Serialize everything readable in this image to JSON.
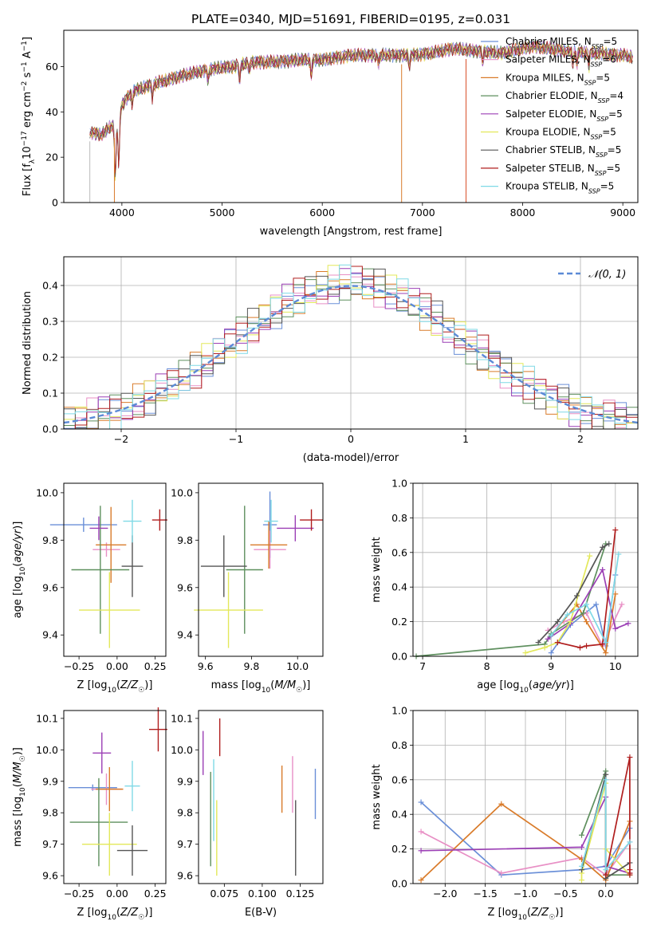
{
  "figure_title": "PLATE=0340, MJD=51691, FIBERID=0195, z=0.031",
  "legend_entries": [
    {
      "model": "Chabrier MILES",
      "n": "5",
      "color": "#6a8fd8"
    },
    {
      "model": "Salpeter MILES",
      "n": "6",
      "color": "#e88fc5"
    },
    {
      "model": "Kroupa MILES",
      "n": "5",
      "color": "#d97b2a"
    },
    {
      "model": "Chabrier ELODIE",
      "n": "4",
      "color": "#5e8f5e"
    },
    {
      "model": "Salpeter ELODIE",
      "n": "5",
      "color": "#9b3fb5"
    },
    {
      "model": "Kroupa ELODIE",
      "n": "5",
      "color": "#e3e85a"
    },
    {
      "model": "Chabrier STELIB",
      "n": "5",
      "color": "#555555"
    },
    {
      "model": "Salpeter STELIB",
      "n": "5",
      "color": "#b01e1e"
    },
    {
      "model": "Kroupa STELIB",
      "n": "5",
      "color": "#7fd9e6"
    }
  ],
  "legend_nssp_label": "N",
  "legend_nssp_sub": "SSP",
  "chart_data": [
    {
      "id": "spectrum",
      "type": "line",
      "title": "PLATE=0340, MJD=51691, FIBERID=0195, z=0.031",
      "xlabel": "wavelength [Angstrom, rest frame]",
      "ylabel": "Flux [f_λ 10^-17 erg cm^-2 s^-1 A^-1]",
      "xlim": [
        3420,
        9150
      ],
      "ylim": [
        0,
        76
      ],
      "xticks": [
        "4000",
        "5000",
        "6000",
        "7000",
        "8000",
        "9000"
      ],
      "yticks": [
        "0",
        "20",
        "40",
        "60"
      ],
      "continuum_knots": [
        [
          3680,
          31
        ],
        [
          3800,
          30
        ],
        [
          3900,
          34
        ],
        [
          3950,
          31
        ],
        [
          4000,
          43
        ],
        [
          4100,
          49
        ],
        [
          4300,
          52
        ],
        [
          4600,
          56
        ],
        [
          4900,
          59
        ],
        [
          5100,
          60
        ],
        [
          5300,
          62
        ],
        [
          5500,
          62
        ],
        [
          5800,
          63
        ],
        [
          6000,
          63
        ],
        [
          6300,
          65
        ],
        [
          6600,
          65
        ],
        [
          6900,
          65
        ],
        [
          7100,
          66
        ],
        [
          7300,
          68
        ],
        [
          7500,
          67
        ],
        [
          7800,
          66
        ],
        [
          8100,
          69
        ],
        [
          8400,
          67
        ],
        [
          8700,
          66
        ],
        [
          9000,
          65
        ],
        [
          9100,
          64
        ]
      ],
      "absorption_features": [
        [
          3934,
          22
        ],
        [
          3969,
          20
        ],
        [
          4102,
          6
        ],
        [
          4304,
          6
        ],
        [
          4861,
          5
        ],
        [
          5175,
          7
        ],
        [
          5270,
          4
        ],
        [
          5890,
          8
        ],
        [
          6563,
          4
        ],
        [
          6870,
          5
        ],
        [
          7600,
          5
        ],
        [
          8500,
          6
        ],
        [
          8542,
          6
        ],
        [
          8662,
          6
        ]
      ],
      "model_cutoffs": [
        [
          3680,
          3660,
          0
        ],
        [
          3925,
          3915,
          0
        ],
        [
          6790,
          6795,
          0
        ],
        [
          7440,
          7425,
          0
        ]
      ],
      "legend_loc": "upper right"
    },
    {
      "id": "residual-histogram",
      "type": "bar",
      "xlabel": "(data-model)/error",
      "ylabel": "Normed distribution",
      "xlim": [
        -2.5,
        2.5
      ],
      "ylim": [
        0,
        0.48
      ],
      "xticks": [
        "−2",
        "−1",
        "0",
        "1",
        "2"
      ],
      "yticks": [
        "0.0",
        "0.1",
        "0.2",
        "0.3",
        "0.4"
      ],
      "grid": true,
      "bin_width": 0.1,
      "reference_curve": {
        "label": "𝒩(0, 1)",
        "mean": 0,
        "sigma": 1,
        "color": "#5b8ad6"
      },
      "legend_loc": "upper right"
    },
    {
      "id": "age-vs-z",
      "type": "scatter",
      "xlabel": "Z [log10(Z/Z☉)]",
      "ylabel": "age [log10(age/yr)]",
      "xlim": [
        -0.35,
        0.32
      ],
      "ylim": [
        9.31,
        10.04
      ],
      "xticks": [
        "−0.25",
        "0.00",
        "0.25"
      ],
      "yticks": [
        "9.4",
        "9.6",
        "9.8",
        "10.0"
      ],
      "points": [
        {
          "x": -0.22,
          "y": 9.865,
          "xerr": 0.22,
          "yerr": 0.03,
          "color": "#6a8fd8"
        },
        {
          "x": -0.07,
          "y": 9.76,
          "xerr": 0.09,
          "yerr": 0.03,
          "color": "#e88fc5"
        },
        {
          "x": -0.04,
          "y": 9.78,
          "xerr": 0.1,
          "yerr": 0.16,
          "color": "#d97b2a"
        },
        {
          "x": -0.11,
          "y": 9.675,
          "xerr": 0.19,
          "yerr": 0.27,
          "color": "#5e8f5e"
        },
        {
          "x": -0.12,
          "y": 9.85,
          "xerr": 0.06,
          "yerr": 0.05,
          "color": "#9b3fb5"
        },
        {
          "x": -0.05,
          "y": 9.505,
          "xerr": 0.2,
          "yerr": 0.16,
          "color": "#e3e85a"
        },
        {
          "x": 0.1,
          "y": 9.69,
          "xerr": 0.07,
          "yerr": 0.13,
          "color": "#555555"
        },
        {
          "x": 0.28,
          "y": 9.885,
          "xerr": 0.05,
          "yerr": 0.045,
          "color": "#b01e1e"
        },
        {
          "x": 0.1,
          "y": 9.88,
          "xerr": 0.06,
          "yerr": 0.09,
          "color": "#7fd9e6"
        }
      ]
    },
    {
      "id": "age-vs-mass",
      "type": "scatter",
      "xlabel": "mass [log10(M/M☉)]",
      "ylabel": "",
      "xlim": [
        9.57,
        10.11
      ],
      "ylim": [
        9.31,
        10.04
      ],
      "xticks": [
        "9.6",
        "9.8",
        "10.0"
      ],
      "yticks": [
        "9.4",
        "9.6",
        "9.8",
        "10.0"
      ],
      "points": [
        {
          "x": 9.88,
          "y": 9.865,
          "xerr": 0.03,
          "yerr": 0.14,
          "color": "#6a8fd8"
        },
        {
          "x": 9.88,
          "y": 9.76,
          "xerr": 0.07,
          "yerr": 0.08,
          "color": "#e88fc5"
        },
        {
          "x": 9.875,
          "y": 9.78,
          "xerr": 0.08,
          "yerr": 0.1,
          "color": "#d97b2a"
        },
        {
          "x": 9.77,
          "y": 9.675,
          "xerr": 0.08,
          "yerr": 0.27,
          "color": "#5e8f5e"
        },
        {
          "x": 9.99,
          "y": 9.85,
          "xerr": 0.08,
          "yerr": 0.055,
          "color": "#9b3fb5"
        },
        {
          "x": 9.7,
          "y": 9.505,
          "xerr": 0.15,
          "yerr": 0.16,
          "color": "#e3e85a"
        },
        {
          "x": 9.68,
          "y": 9.69,
          "xerr": 0.1,
          "yerr": 0.13,
          "color": "#555555"
        },
        {
          "x": 10.06,
          "y": 9.885,
          "xerr": 0.05,
          "yerr": 0.045,
          "color": "#b01e1e"
        },
        {
          "x": 9.885,
          "y": 9.88,
          "xerr": 0.03,
          "yerr": 0.09,
          "color": "#7fd9e6"
        }
      ]
    },
    {
      "id": "mass-weight-vs-age",
      "type": "line",
      "xlabel": "age [log10(age/yr)]",
      "ylabel": "mass weight",
      "xlim": [
        6.85,
        10.35
      ],
      "ylim": [
        0,
        1
      ],
      "xticks": [
        "7",
        "8",
        "9",
        "10"
      ],
      "yticks": [
        "0.0",
        "0.2",
        "0.4",
        "0.6",
        "0.8",
        "1.0"
      ],
      "grid": true,
      "series": [
        {
          "color": "#6a8fd8",
          "points": [
            [
              9.0,
              0.02
            ],
            [
              9.3,
              0.18
            ],
            [
              9.7,
              0.3
            ],
            [
              9.85,
              0.06
            ],
            [
              10.0,
              0.47
            ]
          ]
        },
        {
          "color": "#e88fc5",
          "points": [
            [
              8.95,
              0.15
            ],
            [
              9.2,
              0.2
            ],
            [
              9.55,
              0.25
            ],
            [
              9.8,
              0.06
            ],
            [
              10.1,
              0.3
            ]
          ]
        },
        {
          "color": "#d97b2a",
          "points": [
            [
              9.0,
              0.12
            ],
            [
              9.4,
              0.3
            ],
            [
              9.55,
              0.2
            ],
            [
              9.85,
              0.02
            ],
            [
              10.0,
              0.36
            ]
          ]
        },
        {
          "color": "#5e8f5e",
          "points": [
            [
              6.9,
              0.0
            ],
            [
              8.9,
              0.07
            ],
            [
              9.0,
              0.13
            ],
            [
              9.5,
              0.25
            ],
            [
              9.85,
              0.65
            ]
          ]
        },
        {
          "color": "#9b3fb5",
          "points": [
            [
              8.95,
              0.1
            ],
            [
              9.3,
              0.19
            ],
            [
              9.8,
              0.5
            ],
            [
              10.0,
              0.16
            ],
            [
              10.2,
              0.19
            ]
          ]
        },
        {
          "color": "#e3e85a",
          "points": [
            [
              8.6,
              0.02
            ],
            [
              8.9,
              0.05
            ],
            [
              9.1,
              0.08
            ],
            [
              9.3,
              0.2
            ],
            [
              9.6,
              0.58
            ]
          ]
        },
        {
          "color": "#555555",
          "points": [
            [
              8.8,
              0.08
            ],
            [
              9.1,
              0.2
            ],
            [
              9.4,
              0.35
            ],
            [
              9.8,
              0.63
            ],
            [
              9.9,
              0.65
            ]
          ]
        },
        {
          "color": "#b01e1e",
          "points": [
            [
              9.1,
              0.08
            ],
            [
              9.45,
              0.05
            ],
            [
              9.55,
              0.06
            ],
            [
              9.8,
              0.07
            ],
            [
              10.0,
              0.73
            ]
          ]
        },
        {
          "color": "#7fd9e6",
          "points": [
            [
              9.0,
              0.12
            ],
            [
              9.25,
              0.24
            ],
            [
              9.55,
              0.3
            ],
            [
              9.85,
              0.08
            ],
            [
              10.05,
              0.59
            ]
          ]
        }
      ]
    },
    {
      "id": "mass-vs-z",
      "type": "scatter",
      "xlabel": "Z [log10(Z/Z☉)]",
      "ylabel": "mass [log10(M/M☉)]",
      "xlim": [
        -0.35,
        0.32
      ],
      "ylim": [
        9.575,
        10.125
      ],
      "xticks": [
        "−0.25",
        "0.00",
        "0.25"
      ],
      "yticks": [
        "9.6",
        "9.7",
        "9.8",
        "9.9",
        "10.0",
        "10.1"
      ],
      "points": [
        {
          "x": -0.16,
          "y": 9.88,
          "xerr": 0.16,
          "yerr": 0.01,
          "color": "#6a8fd8"
        },
        {
          "x": -0.07,
          "y": 9.875,
          "xerr": 0.1,
          "yerr": 0.05,
          "color": "#e88fc5"
        },
        {
          "x": -0.05,
          "y": 9.875,
          "xerr": 0.09,
          "yerr": 0.07,
          "color": "#d97b2a"
        },
        {
          "x": -0.12,
          "y": 9.77,
          "xerr": 0.19,
          "yerr": 0.14,
          "color": "#5e8f5e"
        },
        {
          "x": -0.1,
          "y": 9.99,
          "xerr": 0.06,
          "yerr": 0.065,
          "color": "#9b3fb5"
        },
        {
          "x": -0.05,
          "y": 9.7,
          "xerr": 0.18,
          "yerr": 0.1,
          "color": "#e3e85a"
        },
        {
          "x": 0.1,
          "y": 9.68,
          "xerr": 0.1,
          "yerr": 0.08,
          "color": "#555555"
        },
        {
          "x": 0.27,
          "y": 10.065,
          "xerr": 0.06,
          "yerr": 0.07,
          "color": "#b01e1e"
        },
        {
          "x": 0.1,
          "y": 9.885,
          "xerr": 0.05,
          "yerr": 0.08,
          "color": "#7fd9e6"
        }
      ]
    },
    {
      "id": "mass-vs-ebv",
      "type": "scatter",
      "xlabel": "E(B-V)",
      "ylabel": "",
      "xlim": [
        0.058,
        0.14
      ],
      "ylim": [
        9.575,
        10.125
      ],
      "xticks": [
        "0.075",
        "0.100",
        "0.125"
      ],
      "yticks": [
        "9.6",
        "9.7",
        "9.8",
        "9.9",
        "10.0",
        "10.1"
      ],
      "points": [
        {
          "x": 0.135,
          "y": 9.86,
          "yerr": 0.08,
          "color": "#6a8fd8"
        },
        {
          "x": 0.12,
          "y": 9.89,
          "yerr": 0.09,
          "color": "#e88fc5"
        },
        {
          "x": 0.113,
          "y": 9.875,
          "yerr": 0.075,
          "color": "#d97b2a"
        },
        {
          "x": 0.066,
          "y": 9.78,
          "yerr": 0.15,
          "color": "#5e8f5e"
        },
        {
          "x": 0.061,
          "y": 9.99,
          "yerr": 0.07,
          "color": "#9b3fb5"
        },
        {
          "x": 0.07,
          "y": 9.72,
          "yerr": 0.12,
          "color": "#e3e85a"
        },
        {
          "x": 0.122,
          "y": 9.72,
          "yerr": 0.12,
          "color": "#555555"
        },
        {
          "x": 0.072,
          "y": 10.04,
          "yerr": 0.06,
          "color": "#b01e1e"
        },
        {
          "x": 0.068,
          "y": 9.84,
          "yerr": 0.13,
          "color": "#7fd9e6"
        }
      ]
    },
    {
      "id": "mass-weight-vs-z",
      "type": "line",
      "xlabel": "Z [log10(Z/Z☉)]",
      "ylabel": "mass weight",
      "xlim": [
        -2.4,
        0.4
      ],
      "ylim": [
        0,
        1
      ],
      "xticks": [
        "−2.0",
        "−1.5",
        "−1.0",
        "−0.5",
        "0.0"
      ],
      "yticks": [
        "0.0",
        "0.2",
        "0.4",
        "0.6",
        "0.8",
        "1.0"
      ],
      "grid": true,
      "series": [
        {
          "color": "#6a8fd8",
          "points": [
            [
              -2.3,
              0.47
            ],
            [
              -1.3,
              0.05
            ],
            [
              -0.3,
              0.08
            ],
            [
              0.0,
              0.1
            ],
            [
              0.3,
              0.32
            ]
          ]
        },
        {
          "color": "#e88fc5",
          "points": [
            [
              -2.3,
              0.3
            ],
            [
              -1.3,
              0.06
            ],
            [
              -0.3,
              0.15
            ],
            [
              0.0,
              0.05
            ],
            [
              0.3,
              0.24
            ]
          ]
        },
        {
          "color": "#d97b2a",
          "points": [
            [
              -2.3,
              0.02
            ],
            [
              -1.3,
              0.46
            ],
            [
              -0.3,
              0.14
            ],
            [
              0.0,
              0.02
            ],
            [
              0.3,
              0.36
            ]
          ]
        },
        {
          "color": "#5e8f5e",
          "points": [
            [
              -0.3,
              0.28
            ],
            [
              0.0,
              0.65
            ],
            [
              0.0,
              0.05
            ],
            [
              0.3,
              0.05
            ]
          ]
        },
        {
          "color": "#9b3fb5",
          "points": [
            [
              -2.3,
              0.19
            ],
            [
              -0.3,
              0.21
            ],
            [
              0.0,
              0.5
            ],
            [
              0.0,
              0.1
            ],
            [
              0.3,
              0.06
            ]
          ]
        },
        {
          "color": "#e3e85a",
          "points": [
            [
              -0.3,
              0.02
            ],
            [
              -0.3,
              0.06
            ],
            [
              0.0,
              0.58
            ],
            [
              0.0,
              0.2
            ],
            [
              0.3,
              0.05
            ]
          ]
        },
        {
          "color": "#555555",
          "points": [
            [
              -0.3,
              0.08
            ],
            [
              0.0,
              0.63
            ],
            [
              0.0,
              0.03
            ],
            [
              0.3,
              0.12
            ]
          ]
        },
        {
          "color": "#b01e1e",
          "points": [
            [
              0.0,
              0.05
            ],
            [
              0.3,
              0.73
            ],
            [
              0.3,
              0.08
            ],
            [
              0.3,
              0.06
            ],
            [
              0.3,
              0.05
            ]
          ]
        },
        {
          "color": "#7fd9e6",
          "points": [
            [
              -0.3,
              0.1
            ],
            [
              0.0,
              0.6
            ],
            [
              0.0,
              0.08
            ],
            [
              0.3,
              0.24
            ]
          ]
        }
      ]
    }
  ]
}
